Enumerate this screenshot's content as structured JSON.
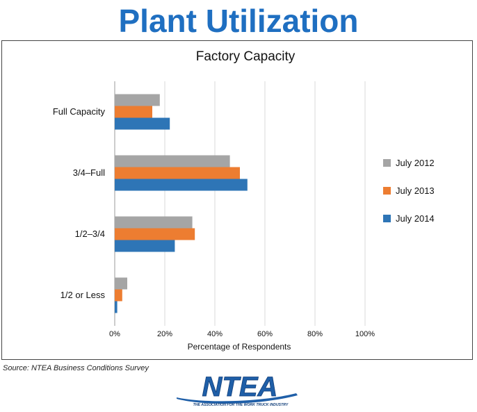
{
  "page_title": "Plant Utilization",
  "source_note": "Source: NTEA Business Conditions Survey",
  "logo": {
    "wordmark": "NTEA",
    "tagline": "THE ASSOCIATION FOR THE WORK TRUCK INDUSTRY",
    "colors": {
      "primary": "#1f5fa8",
      "dark": "#123f7a"
    }
  },
  "chart_data": {
    "type": "bar",
    "orientation": "horizontal",
    "title": "Factory Capacity",
    "xlabel": "Percentage of Respondents",
    "ylabel": "",
    "xlim": [
      0,
      100
    ],
    "x_ticks": [
      "0%",
      "20%",
      "40%",
      "60%",
      "80%",
      "100%"
    ],
    "grid": true,
    "legend_position": "right",
    "categories": [
      "Full Capacity",
      "3/4–Full",
      "1/2–3/4",
      "1/2 or Less"
    ],
    "series": [
      {
        "name": "July 2012",
        "color": "#a5a5a5",
        "values": [
          18,
          46,
          31,
          5
        ]
      },
      {
        "name": "July 2013",
        "color": "#ed7d31",
        "values": [
          15,
          50,
          32,
          3
        ]
      },
      {
        "name": "July 2014",
        "color": "#2e75b6",
        "values": [
          22,
          53,
          24,
          1
        ]
      }
    ]
  }
}
